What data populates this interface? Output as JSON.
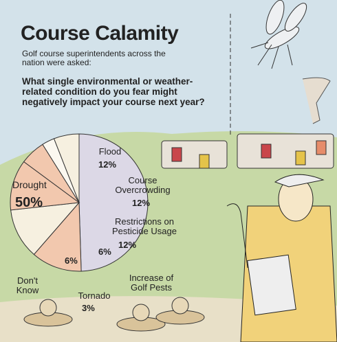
{
  "chart_data": {
    "type": "pie",
    "title": "Course Calamity",
    "subtitle": "Golf course superintendents across the nation were asked:",
    "question": "What single environmental or weather-related condition do you fear might negatively impact your course next year?",
    "categories": [
      "Drought",
      "Flood",
      "Course Overcrowding",
      "Restrictions on Pesticide Usage",
      "Increase of Golf Pests",
      "Tornado",
      "Don't Know"
    ],
    "values": [
      50,
      12,
      12,
      12,
      6,
      3,
      6
    ],
    "value_labels": [
      "50%",
      "12%",
      "12%",
      "12%",
      "6%",
      "3%",
      "6%"
    ],
    "colors": [
      "#dcd8e6",
      "#f2c8ae",
      "#f6f0e0",
      "#f2c8ae",
      "#f2c8ae",
      "#fbf8f0",
      "#f6f0e0"
    ]
  }
}
